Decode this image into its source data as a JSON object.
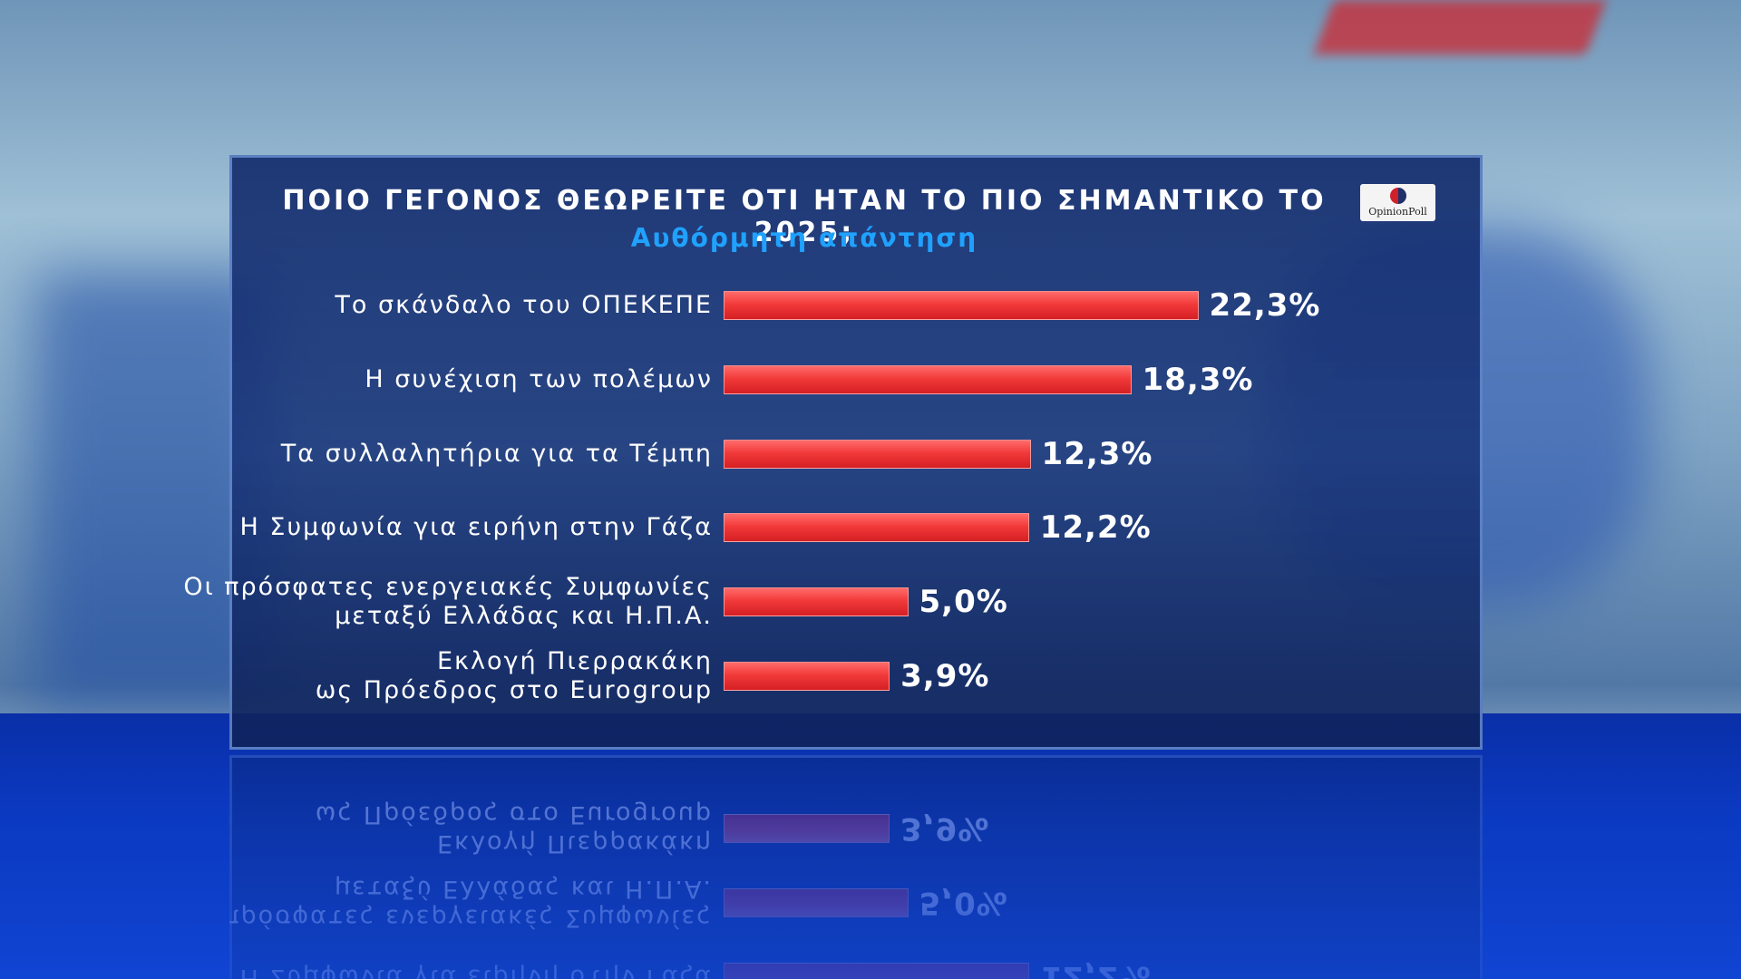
{
  "chart_data": {
    "type": "bar",
    "orientation": "horizontal",
    "title": "ΠΟΙΟ ΓΕΓΟΝΟΣ ΘΕΩΡΕΙΤΕ ΟΤΙ ΗΤΑΝ ΤΟ ΠΙΟ ΣΗΜΑΝΤΙΚΟ ΤΟ 2025;",
    "subtitle": "Αυθόρμητη απάντηση",
    "logo": "OpinionPoll",
    "categories": [
      "Το σκάνδαλο του ΟΠΕΚΕΠΕ",
      "Η συνέχιση των πολέμων",
      "Τα συλλαλητήρια για τα Τέμπη",
      "Η Συμφωνία για ειρήνη στην Γάζα",
      "Οι πρόσφατες ενεργειακές Συμφωνίες\nμεταξύ Ελλάδας και Η.Π.Α.",
      "Εκλογή Πιερρακάκη\nως Πρόεδρος στο Eurogroup"
    ],
    "values": [
      22.3,
      18.3,
      12.3,
      12.2,
      5.0,
      3.9
    ],
    "value_labels": [
      "22,3%",
      "18,3%",
      "12,3%",
      "12,2%",
      "5,0%",
      "3,9%"
    ],
    "color": "#f23a3a",
    "xlim": [
      -6,
      24
    ]
  }
}
